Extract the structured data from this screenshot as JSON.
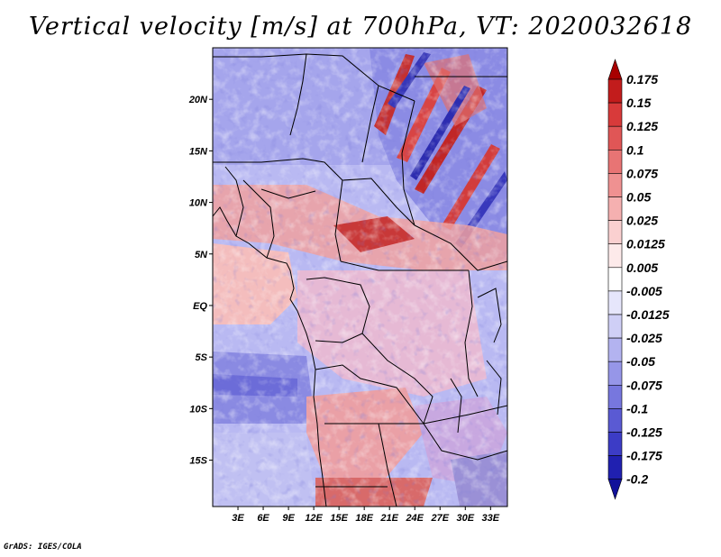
{
  "title": "Vertical velocity [m/s] at 700hPa, VT: 2020032618",
  "footer": "GrADS: IGES/COLA",
  "map": {
    "lat_labels": [
      "20N",
      "15N",
      "10N",
      "5N",
      "EQ",
      "5S",
      "10S",
      "15S"
    ],
    "lat_values": [
      20,
      15,
      10,
      5,
      0,
      -5,
      -10,
      -15
    ],
    "lon_labels": [
      "3E",
      "6E",
      "9E",
      "12E",
      "15E",
      "18E",
      "21E",
      "24E",
      "27E",
      "30E",
      "33E"
    ],
    "lon_values": [
      3,
      6,
      9,
      12,
      15,
      18,
      21,
      24,
      27,
      30,
      33
    ],
    "lat_range": [
      -19.5,
      25
    ],
    "lon_range": [
      0,
      35
    ]
  },
  "colorbar": {
    "levels": [
      "0.175",
      "0.15",
      "0.125",
      "0.1",
      "0.075",
      "0.05",
      "0.025",
      "0.0125",
      "0.005",
      "-0.005",
      "-0.0125",
      "-0.025",
      "-0.05",
      "-0.075",
      "-0.1",
      "-0.125",
      "-0.175",
      "-0.2"
    ],
    "colors": [
      "#a80000",
      "#c21c1c",
      "#d83a3a",
      "#e05656",
      "#e87474",
      "#ef9191",
      "#f5b0b0",
      "#fad0d0",
      "#fdeaea",
      "#ffffff",
      "#e6e6fb",
      "#cfcff6",
      "#b3b3f0",
      "#9696e8",
      "#7777de",
      "#5a5ad3",
      "#3c3cc6",
      "#2020b0",
      "#11119a"
    ]
  }
}
